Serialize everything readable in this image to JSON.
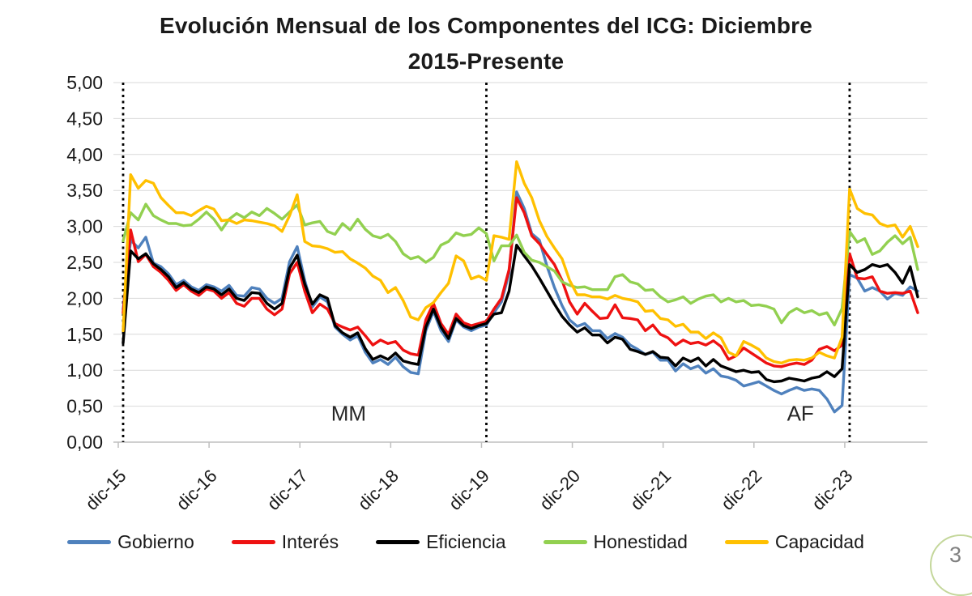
{
  "header": {
    "title_line1": "Evolución Mensual de los Componentes del ICG: Diciembre",
    "title_line2": "2015-Presente"
  },
  "page_number": "3",
  "chart_data": {
    "type": "line",
    "title": "Evolución Mensual de los Componentes del ICG: Diciembre 2015-Presente",
    "xlabel": "",
    "ylabel": "",
    "ylim": [
      0,
      5
    ],
    "y_step": 0.5,
    "grid": true,
    "decimal_separator": ",",
    "legend_position": "bottom",
    "y_tick_labels": [
      "0,00",
      "0,50",
      "1,00",
      "1,50",
      "2,00",
      "2,50",
      "3,00",
      "3,50",
      "4,00",
      "4,50",
      "5,00"
    ],
    "x_ticks": [
      {
        "label": "dic-15",
        "index": 0
      },
      {
        "label": "dic-16",
        "index": 12
      },
      {
        "label": "dic-17",
        "index": 24
      },
      {
        "label": "dic-18",
        "index": 36
      },
      {
        "label": "dic-19",
        "index": 48
      },
      {
        "label": "dic-20",
        "index": 60
      },
      {
        "label": "dic-21",
        "index": 72
      },
      {
        "label": "dic-22",
        "index": 84
      },
      {
        "label": "dic-23",
        "index": 96
      }
    ],
    "n_points": 106,
    "x_unit": "month",
    "dotted_vline_indices": [
      0,
      48,
      96
    ],
    "annotations": [
      {
        "text": "MM",
        "x_index": 29.8,
        "y_value": 0.3
      },
      {
        "text": "AF",
        "x_index": 89.5,
        "y_value": 0.3
      }
    ],
    "series": [
      {
        "name": "Gobierno",
        "color": "#4F81BD",
        "values": [
          1.85,
          2.81,
          2.7,
          2.85,
          2.49,
          2.44,
          2.34,
          2.19,
          2.25,
          2.16,
          2.11,
          2.19,
          2.16,
          2.1,
          2.18,
          2.04,
          2.03,
          2.15,
          2.13,
          2.0,
          1.93,
          2.0,
          2.51,
          2.72,
          2.25,
          1.88,
          2.02,
          1.95,
          1.6,
          1.5,
          1.42,
          1.48,
          1.25,
          1.1,
          1.15,
          1.08,
          1.18,
          1.05,
          0.97,
          0.95,
          1.55,
          1.82,
          1.55,
          1.4,
          1.7,
          1.6,
          1.55,
          1.6,
          1.63,
          1.8,
          1.95,
          2.35,
          3.48,
          3.25,
          2.9,
          2.81,
          2.45,
          2.15,
          1.9,
          1.7,
          1.61,
          1.65,
          1.55,
          1.55,
          1.44,
          1.51,
          1.46,
          1.35,
          1.29,
          1.22,
          1.25,
          1.14,
          1.14,
          0.99,
          1.09,
          1.02,
          1.06,
          0.96,
          1.02,
          0.92,
          0.9,
          0.86,
          0.78,
          0.81,
          0.84,
          0.78,
          0.72,
          0.67,
          0.72,
          0.76,
          0.72,
          0.74,
          0.72,
          0.6,
          0.42,
          0.51,
          2.33,
          2.28,
          2.1,
          2.15,
          2.1,
          1.99,
          2.07,
          2.04,
          2.16,
          2.1
        ]
      },
      {
        "name": "Interés",
        "color": "#EE1111",
        "values": [
          1.8,
          2.95,
          2.51,
          2.61,
          2.44,
          2.36,
          2.25,
          2.11,
          2.19,
          2.1,
          2.04,
          2.13,
          2.1,
          2.0,
          2.08,
          1.93,
          1.89,
          2.0,
          2.0,
          1.85,
          1.77,
          1.85,
          2.34,
          2.5,
          2.1,
          1.8,
          1.92,
          1.85,
          1.65,
          1.6,
          1.56,
          1.6,
          1.48,
          1.35,
          1.42,
          1.37,
          1.4,
          1.28,
          1.23,
          1.21,
          1.7,
          1.93,
          1.65,
          1.5,
          1.78,
          1.66,
          1.62,
          1.65,
          1.68,
          1.85,
          2.0,
          2.4,
          3.4,
          3.19,
          2.87,
          2.76,
          2.61,
          2.47,
          2.25,
          1.95,
          1.78,
          1.93,
          1.82,
          1.72,
          1.73,
          1.91,
          1.73,
          1.72,
          1.7,
          1.55,
          1.63,
          1.5,
          1.45,
          1.35,
          1.42,
          1.37,
          1.39,
          1.35,
          1.41,
          1.33,
          1.15,
          1.2,
          1.31,
          1.24,
          1.17,
          1.1,
          1.06,
          1.05,
          1.08,
          1.1,
          1.08,
          1.14,
          1.29,
          1.33,
          1.27,
          1.35,
          2.62,
          2.28,
          2.27,
          2.3,
          2.1,
          2.07,
          2.08,
          2.07,
          2.1,
          1.8
        ]
      },
      {
        "name": "Eficiencia",
        "color": "#000000",
        "values": [
          1.38,
          2.66,
          2.55,
          2.62,
          2.48,
          2.4,
          2.3,
          2.15,
          2.22,
          2.13,
          2.08,
          2.16,
          2.13,
          2.05,
          2.13,
          2.0,
          1.97,
          2.08,
          2.07,
          1.93,
          1.85,
          1.93,
          2.42,
          2.6,
          2.2,
          1.92,
          2.05,
          2.0,
          1.62,
          1.52,
          1.46,
          1.52,
          1.3,
          1.15,
          1.2,
          1.15,
          1.24,
          1.13,
          1.1,
          1.08,
          1.6,
          1.85,
          1.6,
          1.44,
          1.72,
          1.62,
          1.58,
          1.62,
          1.65,
          1.78,
          1.8,
          2.1,
          2.74,
          2.59,
          2.45,
          2.28,
          2.1,
          1.92,
          1.75,
          1.63,
          1.53,
          1.59,
          1.49,
          1.49,
          1.38,
          1.46,
          1.43,
          1.29,
          1.26,
          1.22,
          1.26,
          1.18,
          1.17,
          1.06,
          1.17,
          1.12,
          1.17,
          1.06,
          1.15,
          1.06,
          1.02,
          0.98,
          1.0,
          0.97,
          0.98,
          0.87,
          0.84,
          0.85,
          0.89,
          0.87,
          0.85,
          0.89,
          0.91,
          0.98,
          0.91,
          1.02,
          2.47,
          2.36,
          2.4,
          2.47,
          2.44,
          2.47,
          2.36,
          2.21,
          2.44,
          2.02
        ]
      },
      {
        "name": "Honestidad",
        "color": "#92D050",
        "values": [
          2.8,
          3.19,
          3.09,
          3.31,
          3.15,
          3.09,
          3.04,
          3.04,
          3.01,
          3.02,
          3.1,
          3.2,
          3.1,
          2.95,
          3.1,
          3.18,
          3.12,
          3.2,
          3.15,
          3.25,
          3.18,
          3.1,
          3.2,
          3.3,
          3.02,
          3.05,
          3.07,
          2.93,
          2.89,
          3.04,
          2.95,
          3.1,
          2.96,
          2.87,
          2.84,
          2.89,
          2.79,
          2.62,
          2.55,
          2.58,
          2.5,
          2.57,
          2.74,
          2.79,
          2.91,
          2.87,
          2.89,
          2.98,
          2.9,
          2.52,
          2.73,
          2.73,
          2.88,
          2.64,
          2.53,
          2.5,
          2.44,
          2.38,
          2.23,
          2.18,
          2.15,
          2.16,
          2.12,
          2.12,
          2.12,
          2.3,
          2.33,
          2.23,
          2.2,
          2.11,
          2.12,
          2.02,
          1.95,
          1.98,
          2.02,
          1.93,
          1.99,
          2.03,
          2.05,
          1.95,
          2.0,
          1.95,
          1.97,
          1.9,
          1.91,
          1.89,
          1.85,
          1.66,
          1.8,
          1.86,
          1.8,
          1.83,
          1.77,
          1.8,
          1.63,
          1.86,
          2.93,
          2.78,
          2.83,
          2.61,
          2.66,
          2.78,
          2.87,
          2.76,
          2.85,
          2.4
        ]
      },
      {
        "name": "Capacidad",
        "color": "#FFC000",
        "values": [
          1.55,
          3.72,
          3.53,
          3.64,
          3.6,
          3.4,
          3.29,
          3.19,
          3.19,
          3.15,
          3.22,
          3.28,
          3.24,
          3.08,
          3.09,
          3.04,
          3.09,
          3.08,
          3.06,
          3.04,
          3.01,
          2.93,
          3.15,
          3.44,
          2.79,
          2.73,
          2.72,
          2.69,
          2.64,
          2.65,
          2.55,
          2.49,
          2.42,
          2.31,
          2.25,
          2.08,
          2.15,
          1.97,
          1.74,
          1.7,
          1.87,
          1.94,
          2.08,
          2.21,
          2.59,
          2.52,
          2.27,
          2.31,
          2.25,
          2.87,
          2.85,
          2.82,
          3.9,
          3.6,
          3.4,
          3.08,
          2.86,
          2.7,
          2.55,
          2.25,
          2.05,
          2.05,
          2.02,
          2.02,
          1.99,
          2.04,
          2.0,
          1.98,
          1.95,
          1.82,
          1.83,
          1.72,
          1.7,
          1.61,
          1.64,
          1.53,
          1.53,
          1.44,
          1.52,
          1.45,
          1.25,
          1.2,
          1.4,
          1.35,
          1.29,
          1.17,
          1.12,
          1.1,
          1.14,
          1.15,
          1.14,
          1.17,
          1.25,
          1.2,
          1.17,
          1.46,
          3.52,
          3.25,
          3.18,
          3.16,
          3.04,
          3.0,
          3.02,
          2.85,
          3.0,
          2.72
        ]
      }
    ],
    "style": {
      "gridline_color": "#D9D9D9",
      "axis_color": "#BFBFBF",
      "vline_color": "#000000",
      "annotation_color": "#262626",
      "line_width": 3.4
    }
  }
}
